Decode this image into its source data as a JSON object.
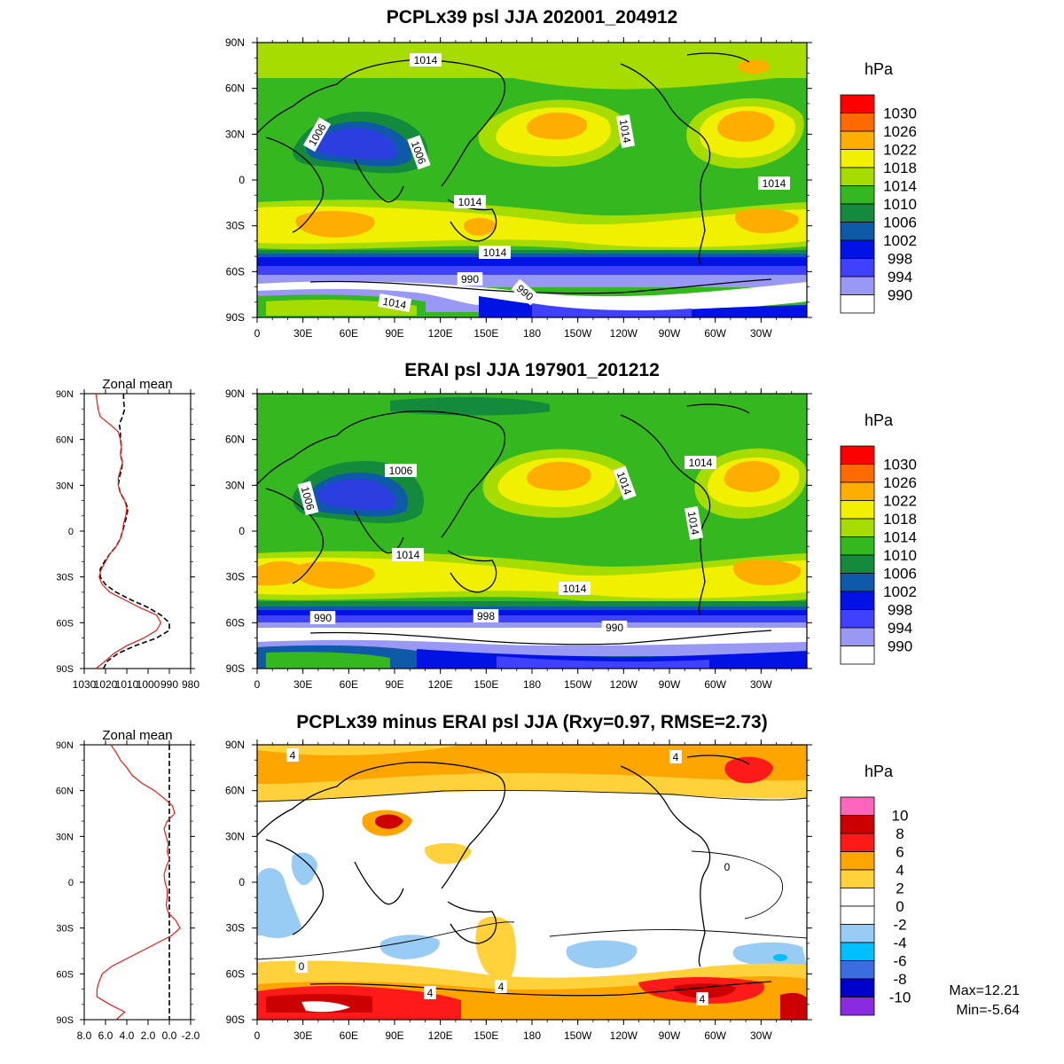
{
  "panels": [
    {
      "id": "model",
      "title": "PCPLx39 psl JJA 202001_204912",
      "unit": "hPa",
      "legend_levels": [
        "1030",
        "1026",
        "1022",
        "1018",
        "1014",
        "1010",
        "1006",
        "1002",
        "998",
        "994",
        "990"
      ],
      "legend_colors": [
        "#ff0000",
        "#ff6a00",
        "#ffae00",
        "#f0f000",
        "#a6dc00",
        "#35b81f",
        "#138a3c",
        "#0e5aa8",
        "#0012e4",
        "#4040ff",
        "#9999f5",
        "#ffffff"
      ],
      "contour_labels": [
        "1014",
        "1006",
        "1006",
        "1014",
        "1014",
        "1014",
        "1014",
        "990",
        "990",
        "1014"
      ]
    },
    {
      "id": "obs",
      "title": "ERAI psl JJA 197901_201212",
      "unit": "hPa",
      "legend_levels": [
        "1030",
        "1026",
        "1022",
        "1018",
        "1014",
        "1010",
        "1006",
        "1002",
        "998",
        "994",
        "990"
      ],
      "legend_colors": [
        "#ff0000",
        "#ff6a00",
        "#ffae00",
        "#f0f000",
        "#a6dc00",
        "#35b81f",
        "#138a3c",
        "#0e5aa8",
        "#0012e4",
        "#4040ff",
        "#9999f5",
        "#ffffff"
      ],
      "contour_labels": [
        "1006",
        "1006",
        "1014",
        "1014",
        "1014",
        "1014",
        "1014",
        "990",
        "998",
        "990"
      ]
    },
    {
      "id": "diff",
      "title": "PCPLx39 minus ERAI psl JJA (Rxy=0.97, RMSE=2.73)",
      "unit": "hPa",
      "legend_levels": [
        "10",
        "8",
        "6",
        "4",
        "2",
        "0",
        "-2",
        "-4",
        "-6",
        "-8",
        "-10"
      ],
      "legend_colors": [
        "#ff66bb",
        "#cc0000",
        "#ff1a1a",
        "#ffa500",
        "#ffd23c",
        "#ffffff",
        "#ffffff",
        "#99ccf5",
        "#00bfff",
        "#3a6ee0",
        "#0000cc",
        "#8a2be2"
      ],
      "contour_labels": [
        "4",
        "4",
        "0",
        "0",
        "4",
        "4",
        "4"
      ],
      "max_label": "Max=12.21",
      "min_label": "Min=-5.64"
    }
  ],
  "axes": {
    "lon_ticks": [
      "0",
      "30E",
      "60E",
      "90E",
      "120E",
      "150E",
      "180",
      "150W",
      "120W",
      "90W",
      "60W",
      "30W"
    ],
    "lat_ticks": [
      "90N",
      "60N",
      "30N",
      "0",
      "30S",
      "60S",
      "90S"
    ]
  },
  "zonal_mean": [
    {
      "title": "Zonal mean",
      "x_ticks": [
        "1030",
        "1020",
        "1010",
        "1000",
        "990",
        "980"
      ],
      "x_range": [
        1030,
        980
      ],
      "model_color": "#e8191c",
      "obs_color": "#000000",
      "model_values": [
        1024.5,
        1024.0,
        1023.5,
        1022.5,
        1018,
        1014,
        1013,
        1012.5,
        1013,
        1012,
        1013,
        1014,
        1014,
        1013,
        1011,
        1010,
        1010.5,
        1011.5,
        1012,
        1013,
        1015,
        1018,
        1020,
        1022,
        1023,
        1021.5,
        1018,
        1011,
        1004,
        996,
        994,
        996,
        1002,
        1010,
        1016,
        1020,
        1024.5
      ],
      "obs_values": [
        1011.5,
        1011.5,
        1011.0,
        1012,
        1013.5,
        1013,
        1013,
        1012.5,
        1013,
        1012,
        1012.5,
        1013.5,
        1014,
        1013,
        1011,
        1009.5,
        1010,
        1011,
        1012,
        1013,
        1015,
        1018,
        1020.5,
        1022.5,
        1022.5,
        1020,
        1015,
        1008,
        1000,
        994,
        990,
        990,
        996,
        1006,
        1014,
        1019,
        1021
      ]
    },
    {
      "title": "Zonal mean",
      "x_ticks": [
        "8.0",
        "6.0",
        "4.0",
        "2.0",
        "0.0",
        "-2.0"
      ],
      "x_range": [
        8,
        -2
      ],
      "diff_color": "#e8191c",
      "zero_color": "#000000",
      "diff_values": [
        5.5,
        5.0,
        4.6,
        4.0,
        3.5,
        2.6,
        1.4,
        0.5,
        -0.3,
        -0.5,
        0.2,
        0.5,
        0.3,
        0.1,
        0.2,
        0.0,
        0.3,
        0.5,
        0.4,
        0.2,
        0.2,
        0.3,
        0.1,
        -0.6,
        -1.0,
        -0.2,
        1.2,
        2.6,
        4.0,
        5.4,
        6.3,
        6.6,
        6.8,
        6.8,
        5.6,
        4.2,
        5.0
      ]
    }
  ]
}
